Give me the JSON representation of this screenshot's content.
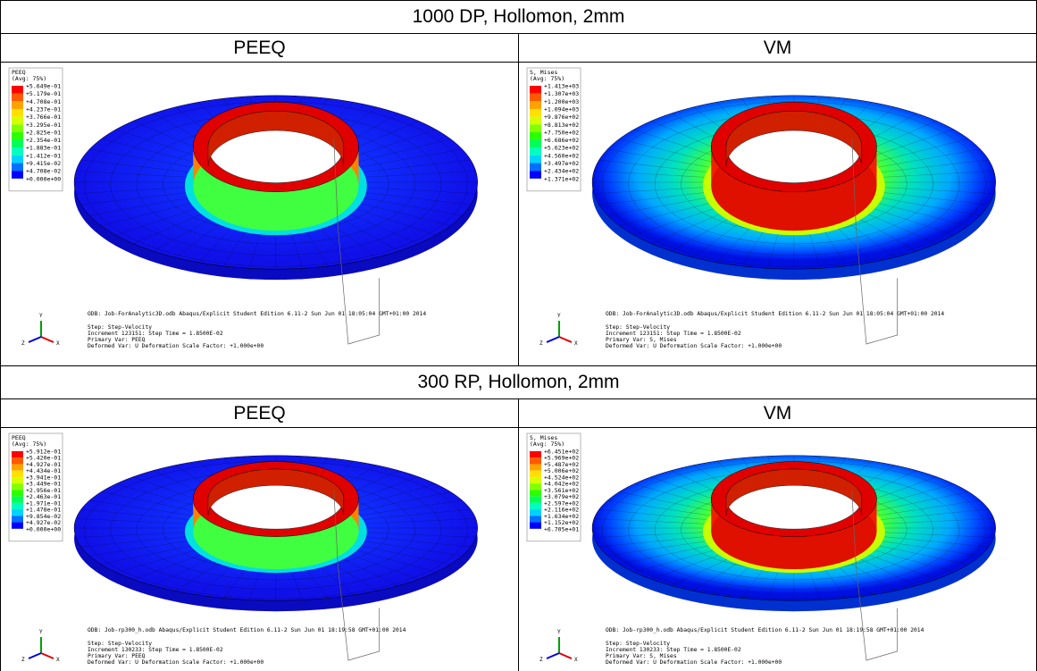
{
  "sections": [
    {
      "title": "1000 DP, Hollomon, 2mm",
      "panels": [
        {
          "header": "PEEQ",
          "kind": "peeq",
          "legend": {
            "title": "PEEQ",
            "avg": "(Avg: 75%)",
            "values": [
              "+5.649e-01",
              "+5.179e-01",
              "+4.708e-01",
              "+4.237e-01",
              "+3.766e-01",
              "+3.295e-01",
              "+2.825e-01",
              "+2.354e-01",
              "+1.883e-01",
              "+1.412e-01",
              "+9.415e-02",
              "+4.708e-02",
              "+0.000e+00"
            ]
          },
          "info": [
            "ODB: Job-ForAnalytic3D.odb    Abaqus/Explicit Student Edition 6.11-2    Sun Jun 01 18:05:04 GMT+01:00 2014",
            "Step: Step-Velocity",
            "Increment    123151: Step Time =    1.8500E-02",
            "Primary Var: PEEQ",
            "Deformed Var: U   Deformation Scale Factor: +1.000e+00"
          ],
          "triad": [
            "Y",
            "Z",
            "X"
          ]
        },
        {
          "header": "VM",
          "kind": "vm",
          "legend": {
            "title": "S, Mises",
            "avg": "(Avg: 75%)",
            "values": [
              "+1.413e+03",
              "+1.307e+03",
              "+1.200e+03",
              "+1.094e+03",
              "+9.876e+02",
              "+8.813e+02",
              "+7.750e+02",
              "+6.686e+02",
              "+5.623e+02",
              "+4.560e+02",
              "+3.497e+02",
              "+2.434e+02",
              "+1.371e+02"
            ]
          },
          "info": [
            "ODB: Job-ForAnalytic3D.odb    Abaqus/Explicit Student Edition 6.11-2    Sun Jun 01 18:05:04 GMT+01:00 2014",
            "Step: Step-Velocity",
            "Increment    123151: Step Time =    1.8500E-02",
            "Primary Var: S, Mises",
            "Deformed Var: U   Deformation Scale Factor: +1.000e+00"
          ],
          "triad": [
            "Y",
            "Z",
            "X"
          ]
        }
      ]
    },
    {
      "title": "300 RP, Hollomon, 2mm",
      "panels": [
        {
          "header": "PEEQ",
          "kind": "peeq",
          "legend": {
            "title": "PEEQ",
            "avg": "(Avg: 75%)",
            "values": [
              "+5.912e-01",
              "+5.420e-01",
              "+4.927e-01",
              "+4.434e-01",
              "+3.941e-01",
              "+3.449e-01",
              "+2.956e-01",
              "+2.463e-01",
              "+1.971e-01",
              "+1.478e-01",
              "+9.854e-02",
              "+4.927e-02",
              "+0.000e+00"
            ]
          },
          "info": [
            "ODB: Job-rp300_h.odb    Abaqus/Explicit Student Edition 6.11-2    Sun Jun 01 18:19:58 GMT+01:00 2014",
            "Step: Step-Velocity",
            "Increment    130233: Step Time =    1.8500E-02",
            "Primary Var: PEEQ",
            "Deformed Var: U   Deformation Scale Factor: +1.000e+00"
          ],
          "triad": [
            "Y",
            "Z",
            "X"
          ]
        },
        {
          "header": "VM",
          "kind": "vm",
          "legend": {
            "title": "S, Mises",
            "avg": "(Avg: 75%)",
            "values": [
              "+6.451e+02",
              "+5.969e+02",
              "+5.487e+02",
              "+5.006e+02",
              "+4.524e+02",
              "+4.042e+02",
              "+3.561e+02",
              "+3.079e+02",
              "+2.597e+02",
              "+2.116e+02",
              "+1.634e+02",
              "+1.152e+02",
              "+6.705e+01"
            ]
          },
          "info": [
            "ODB: Job-rp300_h.odb    Abaqus/Explicit Student Edition 6.11-2    Sun Jun 01 18:19:58 GMT+01:00 2014",
            "Step: Step-Velocity",
            "Increment    130233: Step Time =    1.8500E-02",
            "Primary Var: S, Mises",
            "Deformed Var: U   Deformation Scale Factor: +1.000e+00"
          ],
          "triad": [
            "Y",
            "Z",
            "X"
          ]
        }
      ]
    }
  ]
}
